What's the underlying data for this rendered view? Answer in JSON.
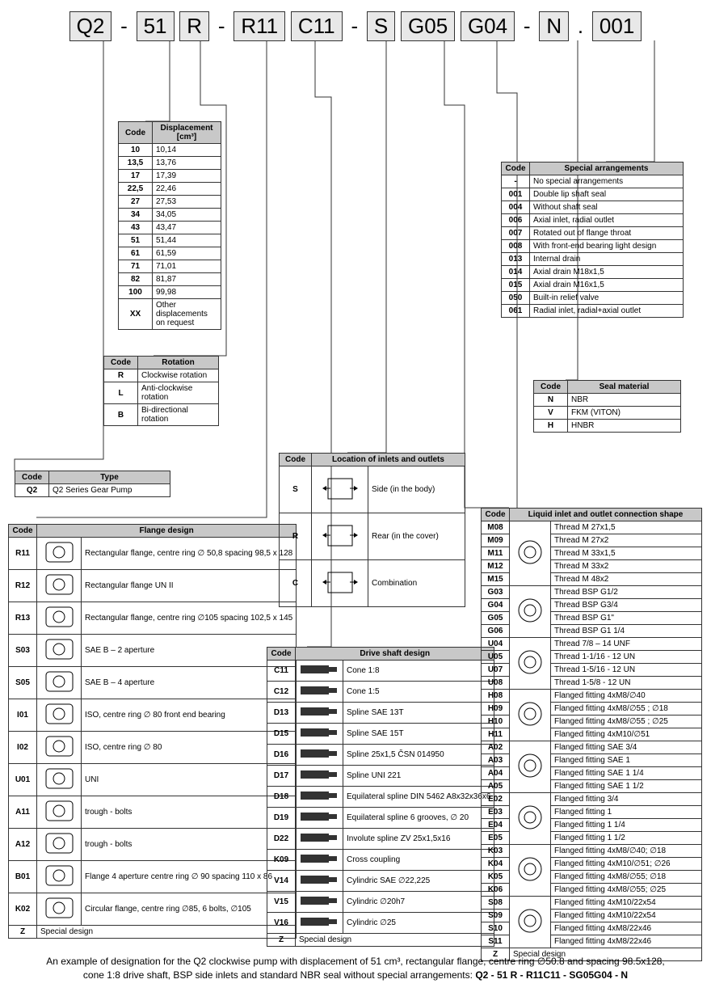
{
  "code_parts": [
    "Q2",
    "-",
    "51",
    "R",
    "-",
    "R11",
    "C11",
    "-",
    "S",
    "G05",
    "G04",
    "-",
    "N",
    ".",
    "001"
  ],
  "displacement": {
    "headers": [
      "Code",
      "Displacement [cm³]"
    ],
    "rows": [
      [
        "10",
        "10,14"
      ],
      [
        "13,5",
        "13,76"
      ],
      [
        "17",
        "17,39"
      ],
      [
        "22,5",
        "22,46"
      ],
      [
        "27",
        "27,53"
      ],
      [
        "34",
        "34,05"
      ],
      [
        "43",
        "43,47"
      ],
      [
        "51",
        "51,44"
      ],
      [
        "61",
        "61,59"
      ],
      [
        "71",
        "71,01"
      ],
      [
        "82",
        "81,87"
      ],
      [
        "100",
        "99,98"
      ],
      [
        "XX",
        "Other displacements on request"
      ]
    ]
  },
  "rotation": {
    "headers": [
      "Code",
      "Rotation"
    ],
    "rows": [
      [
        "R",
        "Clockwise rotation"
      ],
      [
        "L",
        "Anti-clockwise rotation"
      ],
      [
        "B",
        "Bi-directional rotation"
      ]
    ]
  },
  "type": {
    "headers": [
      "Code",
      "Type"
    ],
    "rows": [
      [
        "Q2",
        "Q2 Series Gear Pump"
      ]
    ]
  },
  "flange": {
    "headers": [
      "Code",
      "Flange design"
    ],
    "rows": [
      [
        "R11",
        "Rectangular flange, centre ring ∅ 50,8 spacing 98,5 x 128"
      ],
      [
        "R12",
        "Rectangular flange UN II"
      ],
      [
        "R13",
        "Rectangular flange, centre ring ∅105 spacing 102,5 x 145"
      ],
      [
        "S03",
        "SAE B – 2 aperture"
      ],
      [
        "S05",
        "SAE B – 4 aperture"
      ],
      [
        "I01",
        "ISO, centre ring ∅ 80 front end bearing"
      ],
      [
        "I02",
        "ISO, centre ring ∅ 80"
      ],
      [
        "U01",
        "UNI"
      ],
      [
        "A11",
        "trough - bolts"
      ],
      [
        "A12",
        "trough - bolts"
      ],
      [
        "B01",
        "Flange 4 aperture centre ring ∅ 90 spacing 110 x 86"
      ],
      [
        "K02",
        "Circular flange, centre ring ∅85, 6 bolts, ∅105"
      ],
      [
        "Z",
        "Special design"
      ]
    ]
  },
  "shaft": {
    "headers": [
      "Code",
      "Drive shaft design"
    ],
    "rows": [
      [
        "C11",
        "Cone 1:8"
      ],
      [
        "C12",
        "Cone 1:5"
      ],
      [
        "D13",
        "Spline SAE 13T"
      ],
      [
        "D15",
        "Spline SAE 15T"
      ],
      [
        "D16",
        "Spline 25x1,5 ČSN 014950"
      ],
      [
        "D17",
        "Spline UNI 221"
      ],
      [
        "D18",
        "Equilateral spline DIN 5462  A8x32x36x6"
      ],
      [
        "D19",
        "Equilateral spline 6 grooves, ∅ 20"
      ],
      [
        "D22",
        "Involute spline ZV 25x1,5x16"
      ],
      [
        "K09",
        "Cross coupling"
      ],
      [
        "V14",
        "Cylindric SAE ∅22,225"
      ],
      [
        "V15",
        "Cylindric ∅20h7"
      ],
      [
        "V16",
        "Cylindric ∅25"
      ],
      [
        "Z",
        "Special design"
      ]
    ]
  },
  "location": {
    "headers": [
      "Code",
      "Location of inlets and outlets"
    ],
    "rows": [
      [
        "S",
        "Side (in the body)"
      ],
      [
        "R",
        "Rear (in the cover)"
      ],
      [
        "C",
        "Combination"
      ]
    ]
  },
  "special": {
    "headers": [
      "Code",
      "Special arrangements"
    ],
    "rows": [
      [
        "-",
        "No special arrangements"
      ],
      [
        "001",
        "Double lip shaft seal"
      ],
      [
        "004",
        "Without shaft seal"
      ],
      [
        "006",
        "Axial inlet, radial outlet"
      ],
      [
        "007",
        "Rotated out of flange throat"
      ],
      [
        "008",
        "With front-end bearing light design"
      ],
      [
        "013",
        "Internal drain"
      ],
      [
        "014",
        "Axial drain M18x1,5"
      ],
      [
        "015",
        "Axial drain M16x1,5"
      ],
      [
        "050",
        "Built-in relief valve"
      ],
      [
        "061",
        "Radial inlet, radial+axial outlet"
      ]
    ]
  },
  "seal": {
    "headers": [
      "Code",
      "Seal material"
    ],
    "rows": [
      [
        "N",
        "NBR"
      ],
      [
        "V",
        "FKM (VITON)"
      ],
      [
        "H",
        "HNBR"
      ]
    ]
  },
  "conn": {
    "headers": [
      "Code",
      "Liquid inlet and outlet connection shape"
    ],
    "groups": [
      {
        "codes": [
          "M08",
          "M09",
          "M11",
          "M12",
          "M15"
        ],
        "desc": [
          "Thread M 27x1,5",
          "Thread M 27x2",
          "Thread M 33x1,5",
          "Thread M 33x2",
          "Thread M 48x2"
        ]
      },
      {
        "codes": [
          "G03",
          "G04",
          "G05",
          "G06"
        ],
        "desc": [
          "Thread BSP G1/2",
          "Thread BSP G3/4",
          "Thread BSP G1\"",
          "Thread BSP G1 1/4"
        ]
      },
      {
        "codes": [
          "U04",
          "U05",
          "U07",
          "U08"
        ],
        "desc": [
          "Thread 7/8 – 14 UNF",
          "Thread 1-1/16 - 12 UN",
          "Thread 1-5/16 - 12 UN",
          "Thread 1-5/8 - 12 UN"
        ]
      },
      {
        "codes": [
          "H08",
          "H09",
          "H10",
          "H11"
        ],
        "desc": [
          "Flanged fitting 4xM8/∅40",
          "Flanged fitting 4xM8/∅55 ; ∅18",
          "Flanged fitting 4xM8/∅55 ; ∅25",
          "Flanged fitting 4xM10/∅51"
        ]
      },
      {
        "codes": [
          "A02",
          "A03",
          "A04",
          "A05"
        ],
        "desc": [
          "Flanged fitting SAE 3/4",
          "Flanged fitting SAE 1",
          "Flanged fitting SAE 1 1/4",
          "Flanged fitting SAE 1 1/2"
        ]
      },
      {
        "codes": [
          "E02",
          "E03",
          "E04",
          "E05"
        ],
        "desc": [
          "Flanged fitting 3/4",
          "Flanged fitting 1",
          "Flanged fitting 1 1/4",
          "Flanged fitting 1 1/2"
        ]
      },
      {
        "codes": [
          "K03",
          "K04",
          "K05",
          "K06"
        ],
        "desc": [
          "Flanged fitting 4xM8/∅40; ∅18",
          "Flanged fitting 4xM10/∅51; ∅26",
          "Flanged fitting 4xM8/∅55; ∅18",
          "Flanged fitting 4xM8/∅55; ∅25"
        ]
      },
      {
        "codes": [
          "S08",
          "S09",
          "S10",
          "S11"
        ],
        "desc": [
          "Flanged fitting 4xM10/22x54",
          "Flanged fitting 4xM10/22x54",
          "Flanged fitting 4xM8/22x46",
          "Flanged fitting 4xM8/22x46"
        ]
      }
    ],
    "tail": [
      "Z",
      "Special design"
    ]
  },
  "footer": {
    "line1": "An example of designation for the Q2 clockwise pump with displacement of 51 cm³, rectangular flange, centre ring ∅50.8 and spacing 98.5x128,",
    "line2": "cone 1:8 drive shaft, BSP side inlets and standard NBR seal without special arrangements:",
    "code": "Q2 - 51 R - R11C11 - SG05G04 - N"
  },
  "colors": {
    "bg_header": "#c8c8c8",
    "border": "#333333"
  }
}
